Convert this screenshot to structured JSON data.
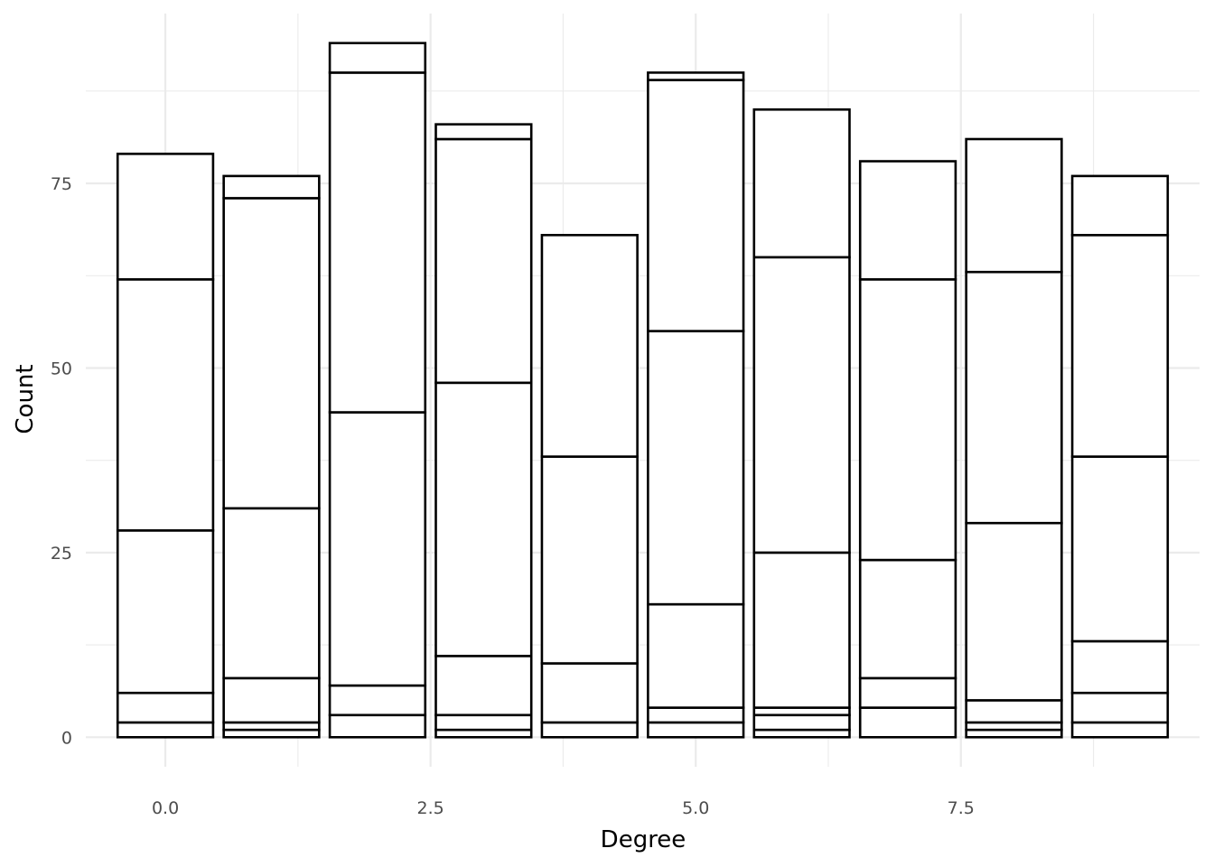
{
  "chart_data": {
    "type": "bar",
    "stacked": true,
    "xlabel": "Degree",
    "ylabel": "Count",
    "x": [
      0,
      1,
      2,
      3,
      4,
      5,
      6,
      7,
      8,
      9
    ],
    "xlim": [
      -0.75,
      9.75
    ],
    "ylim": [
      -4,
      98
    ],
    "x_ticks": [
      0.0,
      2.5,
      5.0,
      7.5
    ],
    "x_tick_labels": [
      "0.0",
      "2.5",
      "5.0",
      "7.5"
    ],
    "y_ticks": [
      0,
      25,
      50,
      75
    ],
    "y_tick_labels": [
      "0",
      "25",
      "50",
      "75"
    ],
    "grid": true,
    "legend": "none",
    "bar_fill": "#ffffff",
    "bar_stroke": "#000000",
    "stack_boundaries": [
      [
        0,
        2,
        6,
        28,
        62,
        79
      ],
      [
        0,
        1,
        2,
        8,
        31,
        73,
        76
      ],
      [
        0,
        3,
        7,
        44,
        90,
        94
      ],
      [
        0,
        1,
        3,
        11,
        48,
        81,
        83
      ],
      [
        0,
        2,
        10,
        38,
        68
      ],
      [
        0,
        2,
        4,
        18,
        55,
        89,
        90
      ],
      [
        0,
        1,
        3,
        4,
        25,
        65,
        85
      ],
      [
        0,
        4,
        8,
        24,
        62,
        78
      ],
      [
        0,
        1,
        2,
        5,
        29,
        63,
        81
      ],
      [
        0,
        2,
        6,
        13,
        38,
        68,
        76
      ]
    ]
  }
}
